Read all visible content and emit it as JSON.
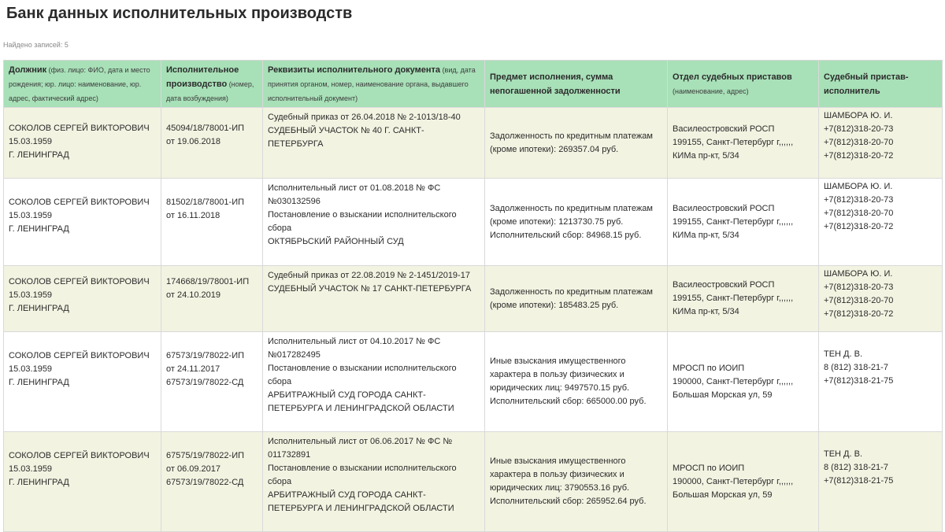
{
  "page": {
    "title": "Банк данных исполнительных производств",
    "records_found": "Найдено записей: 5"
  },
  "table": {
    "headers": [
      {
        "main": "Должник",
        "sub": " (физ. лицо: ФИО, дата и место рождения; юр. лицо: наименование, юр. адрес, фактический адрес)"
      },
      {
        "main": "Исполнительное производство",
        "sub": " (номер, дата возбуждения)"
      },
      {
        "main": "Реквизиты исполнительного документа",
        "sub": " (вид, дата принятия органом, номер, наименование органа, выдавшего исполнительный документ)"
      },
      {
        "main": "Предмет исполнения, сумма непогашенной задолженности",
        "sub": ""
      },
      {
        "main": "Отдел судебных приставов",
        "sub": " (наименование, адрес)"
      },
      {
        "main": "Судебный пристав-исполнитель",
        "sub": ""
      }
    ],
    "rows": [
      {
        "debtor": [
          "СОКОЛОВ СЕРГЕЙ ВИКТОРОВИЧ",
          "15.03.1959",
          "Г. ЛЕНИНГРАД"
        ],
        "proceeding": [
          "45094/18/78001-ИП",
          "от 19.06.2018"
        ],
        "document": [
          "Судебный приказ от 26.04.2018 № 2-1013/18-40",
          "СУДЕБНЫЙ УЧАСТОК № 40 Г. САНКТ-ПЕТЕРБУРГА"
        ],
        "subject": [
          "Задолженность по кредитным платежам (кроме ипотеки): 269357.04 руб."
        ],
        "department": [
          "Василеостровский РОСП",
          "199155, Санкт-Петербург г,,,,,,",
          "КИМа пр-кт, 5/34"
        ],
        "bailiff": [
          "ШАМБОРА Ю. И.",
          "+7(812)318-20-73",
          "+7(812)318-20-70",
          "+7(812)318-20-72"
        ]
      },
      {
        "debtor": [
          "СОКОЛОВ СЕРГЕЙ ВИКТОРОВИЧ",
          "15.03.1959",
          "Г. ЛЕНИНГРАД"
        ],
        "proceeding": [
          "81502/18/78001-ИП",
          "от 16.11.2018"
        ],
        "document": [
          "Исполнительный лист от 01.08.2018 № ФС №030132596",
          "Постановление о взыскании исполнительского сбора",
          "ОКТЯБРЬСКИЙ РАЙОННЫЙ СУД"
        ],
        "subject": [
          "Задолженность по кредитным платежам (кроме ипотеки): 1213730.75 руб.",
          "Исполнительский сбор: 84968.15 руб."
        ],
        "department": [
          "Василеостровский РОСП",
          "199155, Санкт-Петербург г,,,,,,",
          "КИМа пр-кт, 5/34"
        ],
        "bailiff": [
          "ШАМБОРА Ю. И.",
          "+7(812)318-20-73",
          "+7(812)318-20-70",
          "+7(812)318-20-72"
        ]
      },
      {
        "debtor": [
          "СОКОЛОВ СЕРГЕЙ ВИКТОРОВИЧ",
          "15.03.1959",
          "Г. ЛЕНИНГРАД"
        ],
        "proceeding": [
          "174668/19/78001-ИП",
          "от 24.10.2019"
        ],
        "document": [
          "Судебный приказ от 22.08.2019 № 2-1451/2019-17",
          "СУДЕБНЫЙ УЧАСТОК № 17 САНКТ-ПЕТЕРБУРГА"
        ],
        "subject": [
          "Задолженность по кредитным платежам (кроме ипотеки): 185483.25 руб."
        ],
        "department": [
          "Василеостровский РОСП",
          "199155, Санкт-Петербург г,,,,,,",
          "КИМа пр-кт, 5/34"
        ],
        "bailiff": [
          "ШАМБОРА Ю. И.",
          "+7(812)318-20-73",
          "+7(812)318-20-70",
          "+7(812)318-20-72"
        ]
      },
      {
        "debtor": [
          "СОКОЛОВ СЕРГЕЙ ВИКТОРОВИЧ",
          "15.03.1959",
          "Г. ЛЕНИНГРАД"
        ],
        "proceeding": [
          "67573/19/78022-ИП",
          "от 24.11.2017",
          "67573/19/78022-СД"
        ],
        "document": [
          "Исполнительный лист от 04.10.2017 № ФС №017282495",
          "Постановление о взыскании исполнительского сбора",
          "АРБИТРАЖНЫЙ СУД ГОРОДА САНКТ-ПЕТЕРБУРГА И ЛЕНИНГРАДСКОЙ ОБЛАСТИ"
        ],
        "subject": [
          "Иные взыскания имущественного характера в пользу физических и юридических лиц: 9497570.15 руб.",
          "Исполнительский сбор: 665000.00 руб."
        ],
        "department": [
          "МРОСП по ИОИП",
          "190000, Санкт-Петербург г,,,,,,",
          "Большая Морская ул, 59"
        ],
        "bailiff": [
          "ТЕН Д. В.",
          "8 (812) 318-21-7",
          "+7(812)318-21-75"
        ]
      },
      {
        "debtor": [
          "СОКОЛОВ СЕРГЕЙ ВИКТОРОВИЧ",
          "15.03.1959",
          "Г. ЛЕНИНГРАД"
        ],
        "proceeding": [
          "67575/19/78022-ИП",
          "от 06.09.2017",
          "67573/19/78022-СД"
        ],
        "document": [
          "Исполнительный лист от 06.06.2017 № ФС № 011732891",
          "Постановление о взыскании исполнительского сбора",
          "АРБИТРАЖНЫЙ СУД ГОРОДА САНКТ-ПЕТЕРБУРГА И ЛЕНИНГРАДСКОЙ ОБЛАСТИ"
        ],
        "subject": [
          "Иные взыскания имущественного характера в пользу физических и юридических лиц: 3790553.16 руб.",
          "Исполнительский сбор: 265952.64 руб."
        ],
        "department": [
          "МРОСП по ИОИП",
          "190000, Санкт-Петербург г,,,,,,",
          "Большая Морская ул, 59"
        ],
        "bailiff": [
          "ТЕН Д. В.",
          "8 (812) 318-21-7",
          "+7(812)318-21-75"
        ]
      }
    ]
  },
  "colors": {
    "header_bg": "#a8e0b8",
    "row_odd_bg": "#f3f3e2",
    "row_even_bg": "#ffffff"
  }
}
